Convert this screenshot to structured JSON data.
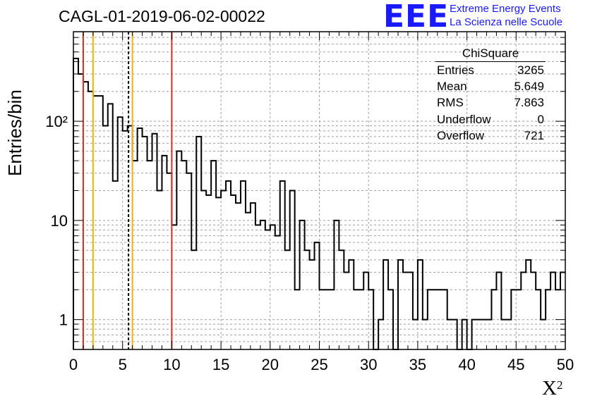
{
  "header": {
    "title": "CAGL-01-2019-06-02-00022",
    "logo": "EEE",
    "logo_line1": "Extreme Energy Events",
    "logo_line2": "La Scienza nelle Scuole"
  },
  "stats_box": {
    "title": "ChiSquare",
    "rows": [
      {
        "label": "Entries",
        "value": "3265"
      },
      {
        "label": "Mean",
        "value": "5.649"
      },
      {
        "label": "RMS",
        "value": "7.863"
      },
      {
        "label": "Underflow",
        "value": "0"
      },
      {
        "label": "Overflow",
        "value": "721"
      }
    ]
  },
  "chart_data": {
    "type": "histogram",
    "title": "CAGL-01-2019-06-02-00022",
    "xlabel": "X",
    "xlabel_sup": "2",
    "ylabel": "Entries/bin",
    "xlim": [
      0,
      50
    ],
    "ylim": [
      0.5,
      800
    ],
    "log_y": true,
    "grid": true,
    "bin_width": 0.5,
    "x_ticks": [
      0,
      5,
      10,
      15,
      20,
      25,
      30,
      35,
      40,
      45,
      50
    ],
    "y_ticks": [
      {
        "value": 1,
        "label": "1"
      },
      {
        "value": 10,
        "label": "10"
      },
      {
        "value": 100,
        "label": "10²"
      }
    ],
    "bin_counts": [
      430,
      300,
      250,
      200,
      180,
      180,
      90,
      150,
      25,
      110,
      80,
      90,
      40,
      85,
      70,
      40,
      75,
      20,
      45,
      30,
      9,
      50,
      40,
      30,
      5,
      70,
      20,
      18,
      40,
      17,
      20,
      25,
      18,
      15,
      25,
      12,
      15,
      9,
      10,
      8,
      9,
      7,
      25,
      5,
      20,
      2,
      10,
      5,
      4,
      6,
      2,
      2,
      2,
      10,
      5,
      3,
      4,
      2,
      2,
      3,
      2,
      0.5,
      1,
      4,
      2,
      0.5,
      4,
      3,
      3,
      1,
      4,
      1,
      2,
      2,
      2,
      2,
      1,
      1,
      0.5,
      1,
      0.5,
      1,
      1,
      1,
      1,
      2,
      3,
      1,
      1,
      2,
      2,
      3,
      4,
      3,
      2,
      1,
      2,
      3,
      2,
      3
    ],
    "vertical_lines": [
      {
        "x": 1.0,
        "color": "#e8291c",
        "style": "solid"
      },
      {
        "x": 2.0,
        "color": "#f5b400",
        "style": "solid"
      },
      {
        "x": 5.6,
        "color": "#000000",
        "style": "dashed"
      },
      {
        "x": 6.0,
        "color": "#f5b400",
        "style": "solid"
      },
      {
        "x": 10.0,
        "color": "#e8291c",
        "style": "solid"
      }
    ]
  }
}
